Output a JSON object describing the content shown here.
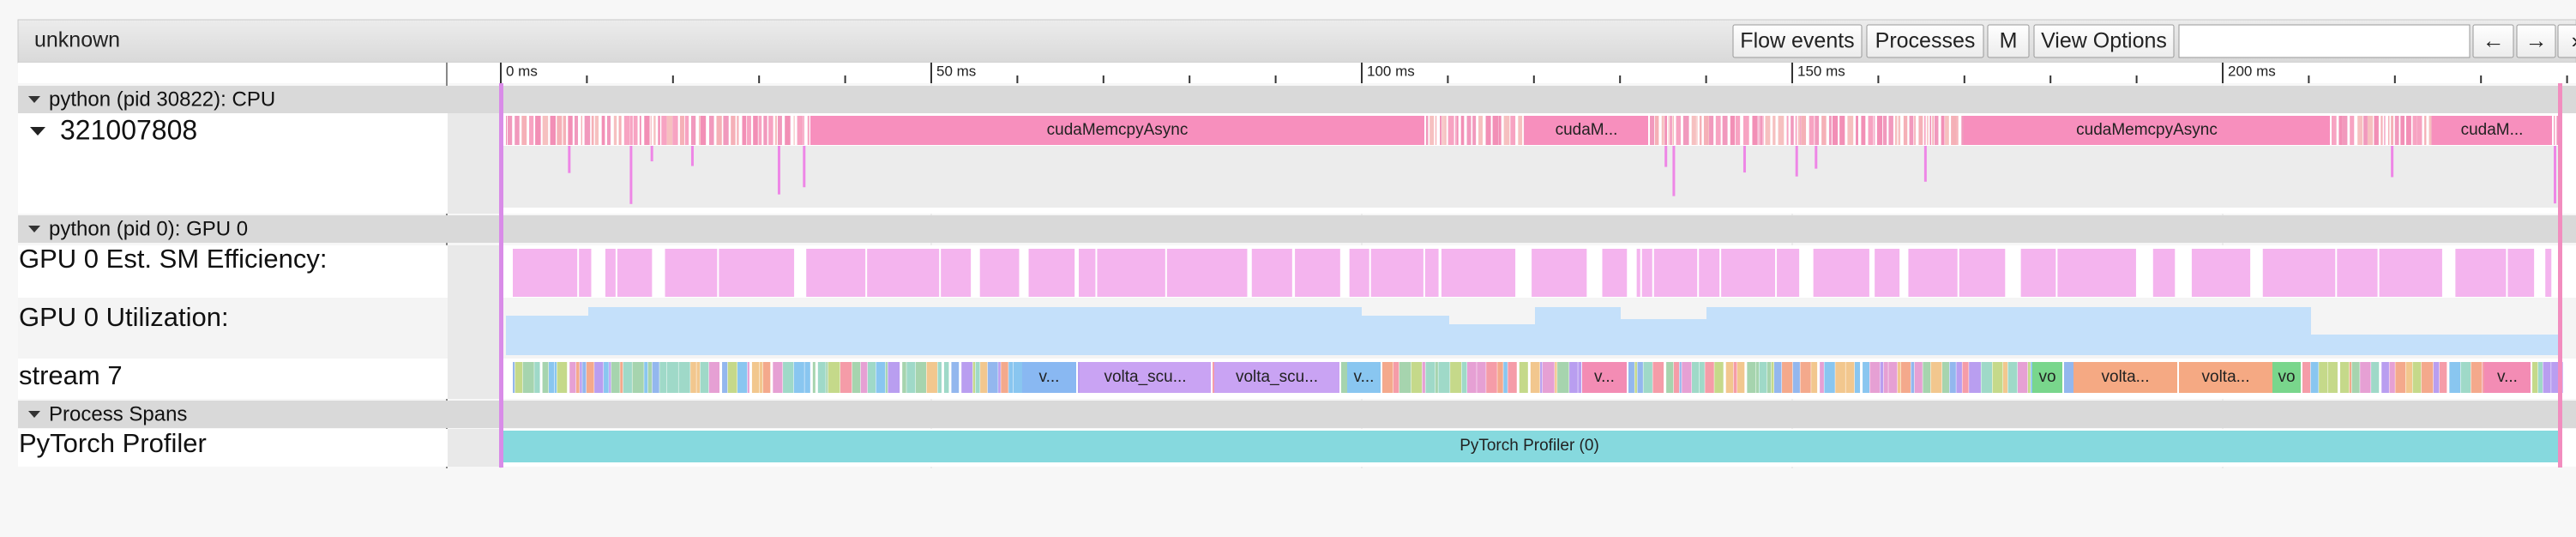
{
  "toolbar": {
    "title": "unknown",
    "buttons": [
      "Flow events",
      "Processes",
      "M",
      "View Options"
    ],
    "nav": [
      "←",
      "→",
      "›"
    ]
  },
  "ruler": {
    "labels": [
      "0 ms",
      "50 ms",
      "100 ms",
      "150 ms",
      "200 ms"
    ]
  },
  "processes": [
    {
      "header": "python (pid 30822): CPU",
      "tracks": [
        {
          "label": "321007808",
          "slices": [
            "cudaMemcpyAsync",
            "cudaM...",
            "cudaMemcpyAsync",
            "cudaM..."
          ]
        }
      ]
    },
    {
      "header": "python (pid 0): GPU 0",
      "tracks": [
        {
          "label": "GPU 0 Est. SM Efficiency:"
        },
        {
          "label": "GPU 0 Utilization:"
        },
        {
          "label": "stream 7",
          "slices": [
            "v...",
            "volta_scu...",
            "volta_scu...",
            "v...",
            "v...",
            "vo",
            "volta...",
            "volta...",
            "vo",
            "v..."
          ]
        }
      ]
    },
    {
      "header": "Process Spans",
      "tracks": [
        {
          "label": "PyTorch Profiler",
          "slices": [
            "PyTorch Profiler (0)"
          ]
        }
      ]
    }
  ]
}
